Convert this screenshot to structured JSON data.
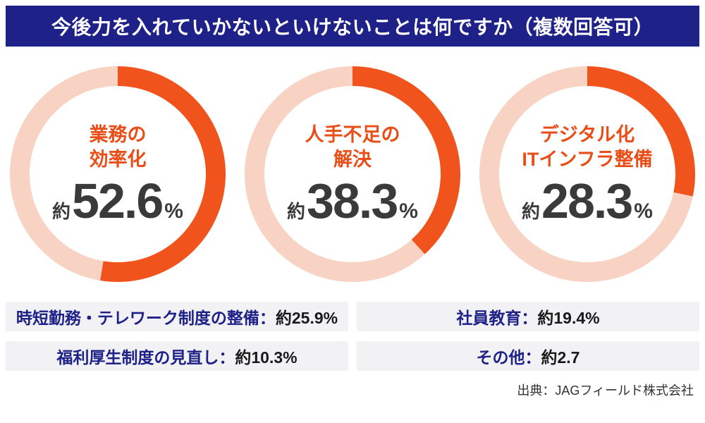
{
  "colors": {
    "banner_bg": "#1e2187",
    "banner_text": "#ffffff",
    "donut_main": "#f0531c",
    "donut_rest": "#f8d2c3",
    "donut_label": "#ea4e18",
    "value_text": "#3a3a3a",
    "secondary_label": "#1e2187",
    "secondary_value": "#1a1a1a",
    "box_bg": "#f2f2f4"
  },
  "header": {
    "title": "今後力を入れていかないといけないことは何ですか（複数回答可）"
  },
  "chart_data": {
    "type": "pie",
    "title": "今後力を入れていかないといけないことは何ですか（複数回答可）",
    "legend_position": "none",
    "donuts": [
      {
        "label": "業務の効率化",
        "label_display": "業務の\n効率化",
        "approx": "約",
        "value": 52.6,
        "unit": "%"
      },
      {
        "label": "人手不足の解決",
        "label_display": "人手不足の\n解決",
        "approx": "約",
        "value": 38.3,
        "unit": "%"
      },
      {
        "label": "デジタル化 ITインフラ整備",
        "label_display": "デジタル化\nITインフラ整備",
        "approx": "約",
        "value": 28.3,
        "unit": "%"
      }
    ],
    "other_items": [
      {
        "label": "時短勤務・テレワーク制度の整備：",
        "value": "約25.9%",
        "numeric_value": 25.9
      },
      {
        "label": "社員教育：",
        "value": "約19.4%",
        "numeric_value": 19.4
      },
      {
        "label": "福利厚生制度の見直し：",
        "value": "約10.3%",
        "numeric_value": 10.3
      },
      {
        "label": "その他：",
        "value": "約2.7",
        "numeric_value": 2.7
      }
    ]
  },
  "footer": {
    "source": "出典：JAGフィールド株式会社"
  }
}
